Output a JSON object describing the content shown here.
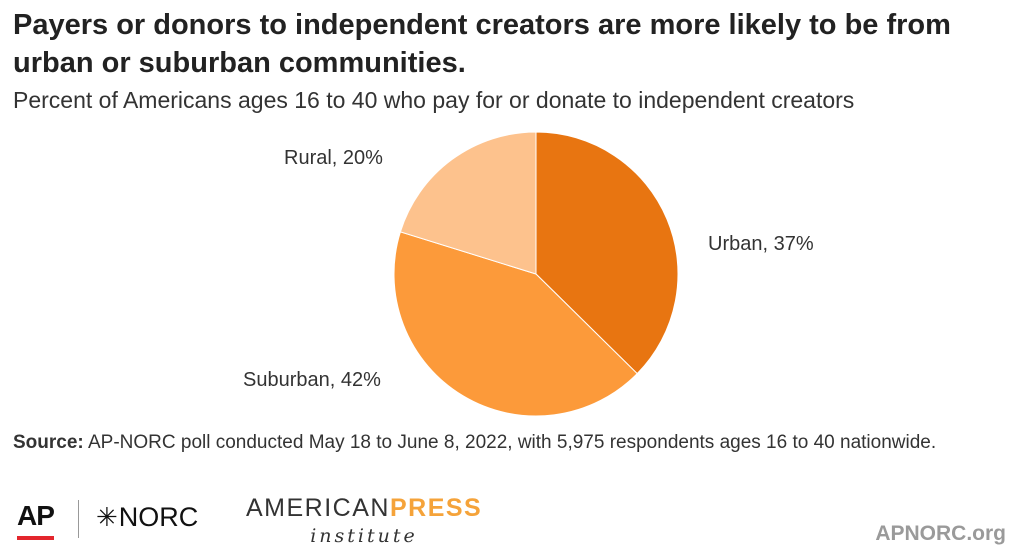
{
  "header": {
    "title": "Payers or donors to independent creators are more likely to be from urban or suburban communities.",
    "subtitle": "Percent of Americans ages 16 to 40 who pay for or donate to independent creators"
  },
  "chart_data": {
    "type": "pie",
    "title": "Payers or donors to independent creators are more likely to be from urban or suburban communities.",
    "subtitle": "Percent of Americans ages 16 to 40 who pay for or donate to independent creators",
    "categories": [
      "Urban",
      "Suburban",
      "Rural"
    ],
    "values": [
      37,
      42,
      20
    ],
    "unit": "%",
    "labels": [
      "Urban, 37%",
      "Suburban, 42%",
      "Rural, 20%"
    ],
    "colors": [
      "#e87511",
      "#fc9a3a",
      "#fdc28d"
    ],
    "start_angle_deg": 0,
    "direction": "clockwise"
  },
  "source": {
    "label": "Source:",
    "text": " AP-NORC poll conducted May 18 to June 8, 2022, with 5,975 respondents ages 16 to 40 nationwide."
  },
  "footer": {
    "ap_logo": "AP",
    "norc_logo": "NORC",
    "api_logo_top_a": "AMERICAN",
    "api_logo_top_b": "PRESS",
    "api_logo_bottom": "institute",
    "site": "APNORC.org",
    "brand_red": "#e3262d",
    "press_orange": "#f5a33a"
  }
}
